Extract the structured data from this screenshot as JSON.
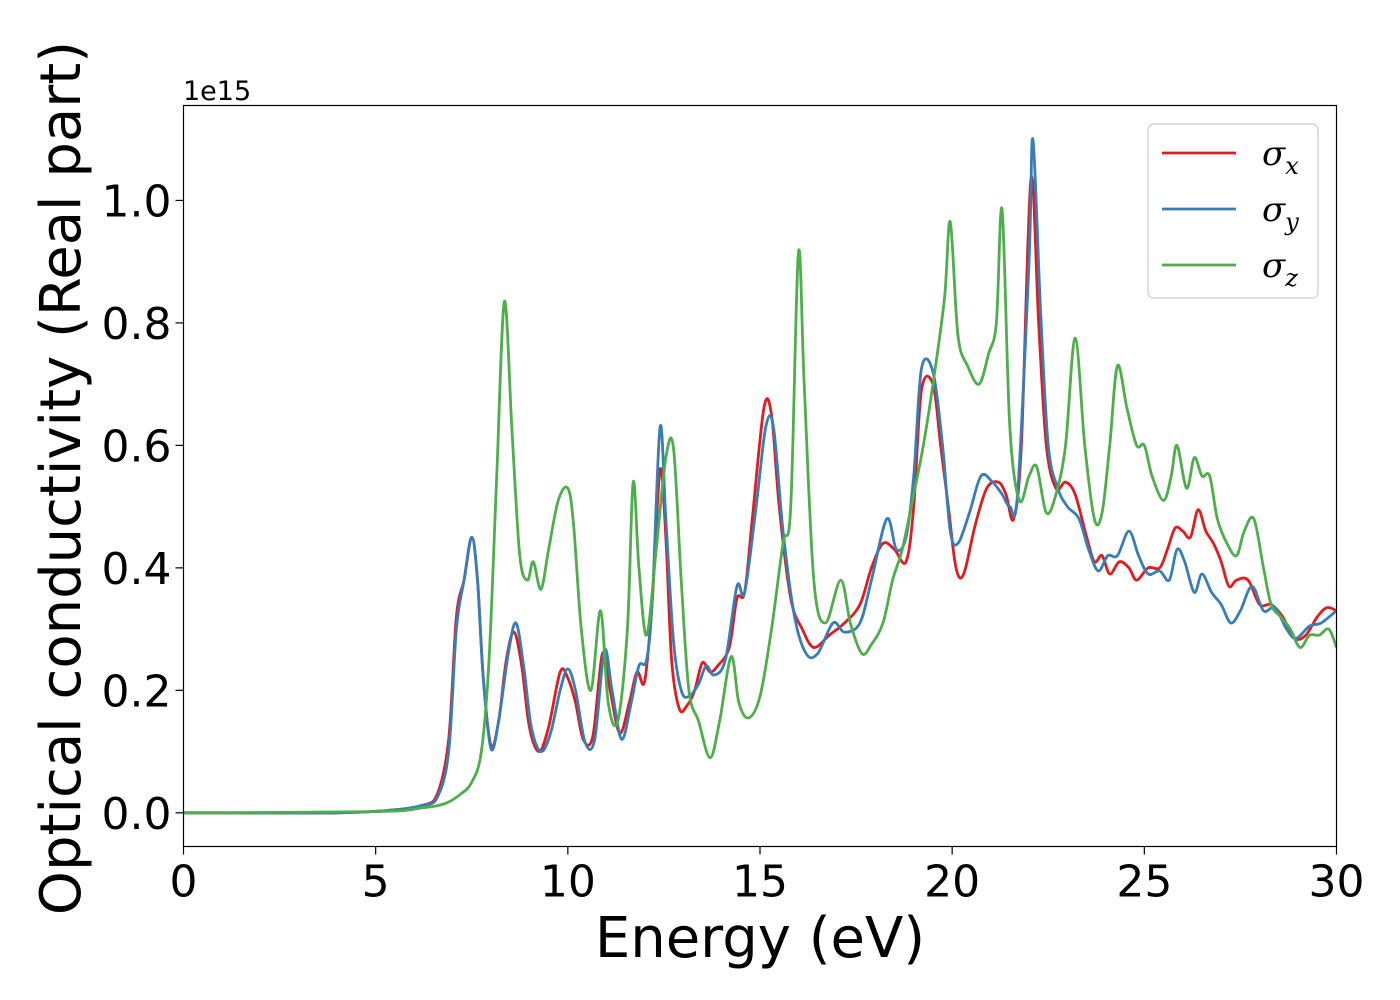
{
  "chart_data": {
    "type": "line",
    "xlabel": "Energy (eV)",
    "ylabel": "Optical conductivity (Real part)",
    "offset_text": "1e15",
    "xlim": [
      0,
      30
    ],
    "ylim": [
      -0.055,
      1.155
    ],
    "x_ticks": [
      0,
      5,
      10,
      15,
      20,
      25,
      30
    ],
    "x_tick_labels": [
      "0",
      "5",
      "10",
      "15",
      "20",
      "25",
      "30"
    ],
    "y_ticks": [
      0.0,
      0.2,
      0.4,
      0.6,
      0.8,
      1.0
    ],
    "y_tick_labels": [
      "0.0",
      "0.2",
      "0.4",
      "0.6",
      "0.8",
      "1.0"
    ],
    "grid": false,
    "legend_position": "top-right",
    "series": [
      {
        "name": "σ",
        "subscript": "x",
        "color": "#e41a1c",
        "points": [
          [
            0,
            0
          ],
          [
            4,
            0
          ],
          [
            5.5,
            0.005
          ],
          [
            6.2,
            0.012
          ],
          [
            6.6,
            0.03
          ],
          [
            6.9,
            0.12
          ],
          [
            7.1,
            0.32
          ],
          [
            7.3,
            0.38
          ],
          [
            7.5,
            0.45
          ],
          [
            7.65,
            0.38
          ],
          [
            7.8,
            0.22
          ],
          [
            8.0,
            0.11
          ],
          [
            8.2,
            0.15
          ],
          [
            8.4,
            0.25
          ],
          [
            8.6,
            0.295
          ],
          [
            8.8,
            0.24
          ],
          [
            9.0,
            0.14
          ],
          [
            9.25,
            0.1
          ],
          [
            9.5,
            0.14
          ],
          [
            9.8,
            0.23
          ],
          [
            10.0,
            0.22
          ],
          [
            10.2,
            0.18
          ],
          [
            10.4,
            0.12
          ],
          [
            10.65,
            0.125
          ],
          [
            10.9,
            0.26
          ],
          [
            11.1,
            0.2
          ],
          [
            11.35,
            0.13
          ],
          [
            11.6,
            0.18
          ],
          [
            11.8,
            0.23
          ],
          [
            12.0,
            0.215
          ],
          [
            12.2,
            0.35
          ],
          [
            12.4,
            0.56
          ],
          [
            12.55,
            0.45
          ],
          [
            12.7,
            0.25
          ],
          [
            12.9,
            0.17
          ],
          [
            13.1,
            0.175
          ],
          [
            13.3,
            0.2
          ],
          [
            13.5,
            0.245
          ],
          [
            13.7,
            0.23
          ],
          [
            13.9,
            0.24
          ],
          [
            14.2,
            0.27
          ],
          [
            14.4,
            0.35
          ],
          [
            14.6,
            0.36
          ],
          [
            14.8,
            0.48
          ],
          [
            15.1,
            0.66
          ],
          [
            15.3,
            0.65
          ],
          [
            15.5,
            0.5
          ],
          [
            15.8,
            0.35
          ],
          [
            16.1,
            0.3
          ],
          [
            16.4,
            0.27
          ],
          [
            16.8,
            0.29
          ],
          [
            17.2,
            0.31
          ],
          [
            17.6,
            0.34
          ],
          [
            17.9,
            0.4
          ],
          [
            18.2,
            0.44
          ],
          [
            18.5,
            0.43
          ],
          [
            18.8,
            0.41
          ],
          [
            19.0,
            0.5
          ],
          [
            19.2,
            0.69
          ],
          [
            19.5,
            0.7
          ],
          [
            19.7,
            0.6
          ],
          [
            19.9,
            0.5
          ],
          [
            20.1,
            0.4
          ],
          [
            20.3,
            0.39
          ],
          [
            20.6,
            0.47
          ],
          [
            20.9,
            0.53
          ],
          [
            21.2,
            0.54
          ],
          [
            21.4,
            0.52
          ],
          [
            21.6,
            0.48
          ],
          [
            21.8,
            0.6
          ],
          [
            22.05,
            1.035
          ],
          [
            22.25,
            0.8
          ],
          [
            22.45,
            0.6
          ],
          [
            22.7,
            0.53
          ],
          [
            22.95,
            0.54
          ],
          [
            23.2,
            0.52
          ],
          [
            23.5,
            0.45
          ],
          [
            23.7,
            0.41
          ],
          [
            23.9,
            0.42
          ],
          [
            24.1,
            0.39
          ],
          [
            24.35,
            0.41
          ],
          [
            24.6,
            0.4
          ],
          [
            24.8,
            0.38
          ],
          [
            25.1,
            0.4
          ],
          [
            25.4,
            0.4
          ],
          [
            25.6,
            0.43
          ],
          [
            25.8,
            0.465
          ],
          [
            26.0,
            0.46
          ],
          [
            26.2,
            0.45
          ],
          [
            26.4,
            0.495
          ],
          [
            26.6,
            0.46
          ],
          [
            26.8,
            0.44
          ],
          [
            27.0,
            0.41
          ],
          [
            27.2,
            0.37
          ],
          [
            27.4,
            0.38
          ],
          [
            27.7,
            0.38
          ],
          [
            28.0,
            0.34
          ],
          [
            28.3,
            0.34
          ],
          [
            28.6,
            0.32
          ],
          [
            28.9,
            0.285
          ],
          [
            29.2,
            0.29
          ],
          [
            29.5,
            0.32
          ],
          [
            29.75,
            0.335
          ],
          [
            30.0,
            0.33
          ]
        ]
      },
      {
        "name": "σ",
        "subscript": "y",
        "color": "#377eb8",
        "points": [
          [
            0,
            0
          ],
          [
            4,
            0
          ],
          [
            5.5,
            0.005
          ],
          [
            6.2,
            0.012
          ],
          [
            6.6,
            0.025
          ],
          [
            6.9,
            0.1
          ],
          [
            7.1,
            0.3
          ],
          [
            7.3,
            0.38
          ],
          [
            7.5,
            0.45
          ],
          [
            7.65,
            0.38
          ],
          [
            7.8,
            0.22
          ],
          [
            8.0,
            0.105
          ],
          [
            8.2,
            0.15
          ],
          [
            8.45,
            0.26
          ],
          [
            8.65,
            0.31
          ],
          [
            8.85,
            0.24
          ],
          [
            9.05,
            0.14
          ],
          [
            9.3,
            0.1
          ],
          [
            9.55,
            0.13
          ],
          [
            9.8,
            0.2
          ],
          [
            10.0,
            0.235
          ],
          [
            10.2,
            0.2
          ],
          [
            10.45,
            0.115
          ],
          [
            10.7,
            0.12
          ],
          [
            10.95,
            0.265
          ],
          [
            11.15,
            0.2
          ],
          [
            11.4,
            0.12
          ],
          [
            11.65,
            0.18
          ],
          [
            11.85,
            0.24
          ],
          [
            12.05,
            0.25
          ],
          [
            12.2,
            0.35
          ],
          [
            12.4,
            0.63
          ],
          [
            12.55,
            0.48
          ],
          [
            12.75,
            0.28
          ],
          [
            12.95,
            0.2
          ],
          [
            13.15,
            0.19
          ],
          [
            13.4,
            0.21
          ],
          [
            13.6,
            0.24
          ],
          [
            13.8,
            0.225
          ],
          [
            14.1,
            0.25
          ],
          [
            14.4,
            0.37
          ],
          [
            14.6,
            0.36
          ],
          [
            14.9,
            0.5
          ],
          [
            15.15,
            0.63
          ],
          [
            15.35,
            0.63
          ],
          [
            15.6,
            0.46
          ],
          [
            15.9,
            0.32
          ],
          [
            16.2,
            0.26
          ],
          [
            16.5,
            0.26
          ],
          [
            16.9,
            0.31
          ],
          [
            17.2,
            0.295
          ],
          [
            17.6,
            0.31
          ],
          [
            17.9,
            0.38
          ],
          [
            18.3,
            0.48
          ],
          [
            18.55,
            0.43
          ],
          [
            18.8,
            0.45
          ],
          [
            19.0,
            0.55
          ],
          [
            19.2,
            0.725
          ],
          [
            19.5,
            0.72
          ],
          [
            19.75,
            0.6
          ],
          [
            19.95,
            0.46
          ],
          [
            20.15,
            0.44
          ],
          [
            20.45,
            0.49
          ],
          [
            20.75,
            0.55
          ],
          [
            21.05,
            0.54
          ],
          [
            21.3,
            0.52
          ],
          [
            21.5,
            0.5
          ],
          [
            21.7,
            0.52
          ],
          [
            22.0,
            0.9
          ],
          [
            22.1,
            1.1
          ],
          [
            22.3,
            0.82
          ],
          [
            22.5,
            0.6
          ],
          [
            22.75,
            0.53
          ],
          [
            23.0,
            0.5
          ],
          [
            23.3,
            0.48
          ],
          [
            23.55,
            0.43
          ],
          [
            23.8,
            0.395
          ],
          [
            24.05,
            0.42
          ],
          [
            24.3,
            0.42
          ],
          [
            24.6,
            0.46
          ],
          [
            24.85,
            0.42
          ],
          [
            25.1,
            0.39
          ],
          [
            25.4,
            0.395
          ],
          [
            25.65,
            0.38
          ],
          [
            25.85,
            0.43
          ],
          [
            26.05,
            0.41
          ],
          [
            26.3,
            0.36
          ],
          [
            26.5,
            0.39
          ],
          [
            26.75,
            0.36
          ],
          [
            27.0,
            0.34
          ],
          [
            27.25,
            0.31
          ],
          [
            27.5,
            0.33
          ],
          [
            27.8,
            0.37
          ],
          [
            28.1,
            0.33
          ],
          [
            28.4,
            0.335
          ],
          [
            28.7,
            0.3
          ],
          [
            28.95,
            0.285
          ],
          [
            29.3,
            0.305
          ],
          [
            29.6,
            0.31
          ],
          [
            30.0,
            0.33
          ]
        ]
      },
      {
        "name": "σ",
        "subscript": "z",
        "color": "#4daf4a",
        "points": [
          [
            0,
            0
          ],
          [
            5,
            0.002
          ],
          [
            6.2,
            0.008
          ],
          [
            6.8,
            0.015
          ],
          [
            7.2,
            0.03
          ],
          [
            7.5,
            0.05
          ],
          [
            7.75,
            0.1
          ],
          [
            7.95,
            0.25
          ],
          [
            8.15,
            0.55
          ],
          [
            8.35,
            0.835
          ],
          [
            8.55,
            0.62
          ],
          [
            8.75,
            0.42
          ],
          [
            8.95,
            0.38
          ],
          [
            9.1,
            0.41
          ],
          [
            9.3,
            0.365
          ],
          [
            9.5,
            0.43
          ],
          [
            9.75,
            0.51
          ],
          [
            10.0,
            0.53
          ],
          [
            10.15,
            0.47
          ],
          [
            10.35,
            0.3
          ],
          [
            10.6,
            0.2
          ],
          [
            10.85,
            0.33
          ],
          [
            11.05,
            0.18
          ],
          [
            11.3,
            0.15
          ],
          [
            11.55,
            0.3
          ],
          [
            11.7,
            0.54
          ],
          [
            11.85,
            0.4
          ],
          [
            12.05,
            0.29
          ],
          [
            12.3,
            0.43
          ],
          [
            12.55,
            0.58
          ],
          [
            12.75,
            0.595
          ],
          [
            12.95,
            0.38
          ],
          [
            13.15,
            0.2
          ],
          [
            13.4,
            0.15
          ],
          [
            13.7,
            0.09
          ],
          [
            13.95,
            0.15
          ],
          [
            14.25,
            0.255
          ],
          [
            14.45,
            0.18
          ],
          [
            14.7,
            0.155
          ],
          [
            15.0,
            0.19
          ],
          [
            15.3,
            0.3
          ],
          [
            15.6,
            0.44
          ],
          [
            15.8,
            0.5
          ],
          [
            16.0,
            0.915
          ],
          [
            16.15,
            0.7
          ],
          [
            16.4,
            0.38
          ],
          [
            16.7,
            0.31
          ],
          [
            17.1,
            0.38
          ],
          [
            17.35,
            0.31
          ],
          [
            17.65,
            0.26
          ],
          [
            17.9,
            0.275
          ],
          [
            18.2,
            0.31
          ],
          [
            18.45,
            0.38
          ],
          [
            18.7,
            0.43
          ],
          [
            19.0,
            0.52
          ],
          [
            19.25,
            0.6
          ],
          [
            19.5,
            0.7
          ],
          [
            19.8,
            0.84
          ],
          [
            19.95,
            0.965
          ],
          [
            20.15,
            0.78
          ],
          [
            20.4,
            0.73
          ],
          [
            20.7,
            0.7
          ],
          [
            20.95,
            0.75
          ],
          [
            21.15,
            0.8
          ],
          [
            21.3,
            0.985
          ],
          [
            21.5,
            0.63
          ],
          [
            21.75,
            0.51
          ],
          [
            22.0,
            0.55
          ],
          [
            22.2,
            0.565
          ],
          [
            22.45,
            0.49
          ],
          [
            22.7,
            0.52
          ],
          [
            22.95,
            0.6
          ],
          [
            23.2,
            0.775
          ],
          [
            23.45,
            0.6
          ],
          [
            23.7,
            0.48
          ],
          [
            23.9,
            0.49
          ],
          [
            24.1,
            0.6
          ],
          [
            24.3,
            0.73
          ],
          [
            24.55,
            0.66
          ],
          [
            24.8,
            0.6
          ],
          [
            25.0,
            0.6
          ],
          [
            25.2,
            0.55
          ],
          [
            25.5,
            0.51
          ],
          [
            25.7,
            0.55
          ],
          [
            25.85,
            0.6
          ],
          [
            26.1,
            0.53
          ],
          [
            26.3,
            0.58
          ],
          [
            26.5,
            0.55
          ],
          [
            26.7,
            0.55
          ],
          [
            26.9,
            0.48
          ],
          [
            27.15,
            0.44
          ],
          [
            27.4,
            0.42
          ],
          [
            27.6,
            0.46
          ],
          [
            27.85,
            0.48
          ],
          [
            28.1,
            0.4
          ],
          [
            28.3,
            0.34
          ],
          [
            28.55,
            0.32
          ],
          [
            28.8,
            0.3
          ],
          [
            29.05,
            0.27
          ],
          [
            29.3,
            0.29
          ],
          [
            29.55,
            0.29
          ],
          [
            29.8,
            0.3
          ],
          [
            30.0,
            0.27
          ]
        ]
      }
    ]
  }
}
